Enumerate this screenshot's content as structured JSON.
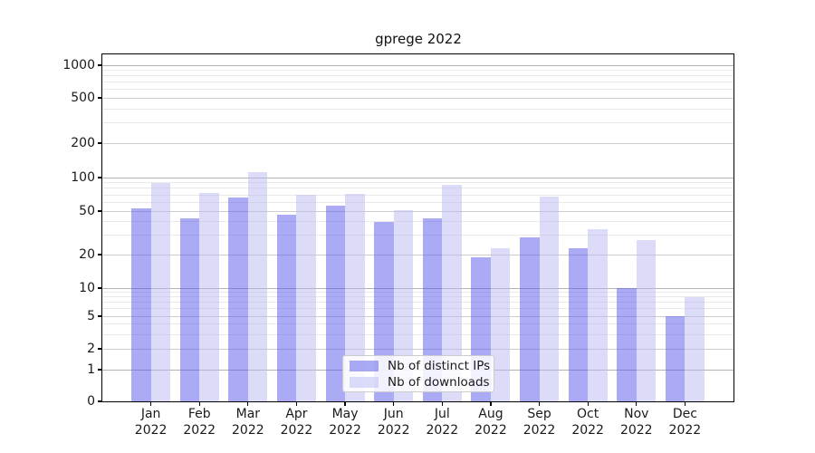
{
  "title": "gprege 2022",
  "chart_data": {
    "type": "bar",
    "title": "gprege 2022",
    "categories": [
      "Jan 2022",
      "Feb 2022",
      "Mar 2022",
      "Apr 2022",
      "May 2022",
      "Jun 2022",
      "Jul 2022",
      "Aug 2022",
      "Sep 2022",
      "Oct 2022",
      "Nov 2022",
      "Dec 2022"
    ],
    "months": [
      "Jan",
      "Feb",
      "Mar",
      "Apr",
      "May",
      "Jun",
      "Jul",
      "Aug",
      "Sep",
      "Oct",
      "Nov",
      "Dec"
    ],
    "year": "2022",
    "series": [
      {
        "name": "Nb of distinct IPs",
        "color": "rgba(85,85,235,0.5)",
        "color_on_white": "#aaaaf5",
        "values": [
          53,
          43,
          66,
          46,
          56,
          40,
          43,
          19,
          29,
          23,
          10,
          5
        ]
      },
      {
        "name": "Nb of downloads",
        "color": "rgba(185,185,243,0.5)",
        "color_on_white": "#dcdcf9",
        "values": [
          90,
          73,
          112,
          70,
          72,
          51,
          86,
          23,
          68,
          34,
          27,
          8
        ]
      }
    ],
    "xlabel": "",
    "ylabel": "",
    "yscale": "symlog",
    "yticks": [
      0,
      1,
      2,
      5,
      10,
      20,
      50,
      100,
      200,
      500,
      1000
    ],
    "ylim": [
      0,
      1250
    ],
    "grid": true,
    "legend_position": "lower center",
    "background": "#ffffff",
    "grid_colors": {
      "major": "#b2b2b2",
      "mid": "#cdcdcd",
      "minor": "#e9e9e9"
    }
  },
  "legend": {
    "items": [
      {
        "label": "Nb of distinct IPs"
      },
      {
        "label": "Nb of downloads"
      }
    ]
  }
}
